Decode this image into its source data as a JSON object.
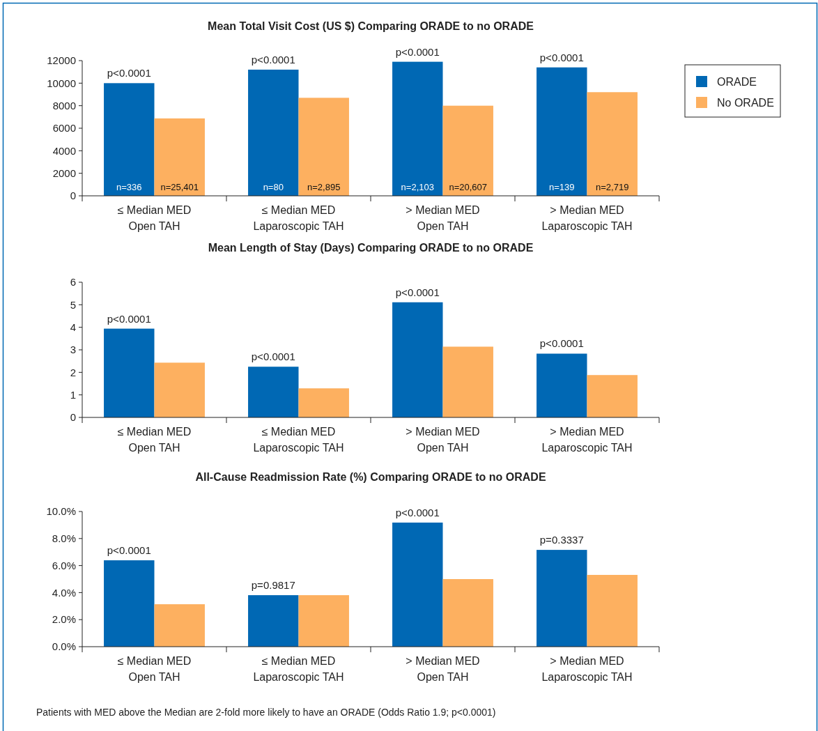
{
  "chart_data": [
    {
      "type": "bar",
      "title": "Mean Total Visit Cost (US $) Comparing ORADE to no ORADE",
      "categories": [
        "≤ Median MED\nOpen TAH",
        "≤ Median MED\nLaparoscopic TAH",
        "> Median MED\nOpen TAH",
        "> Median MED\nLaparoscopic TAH"
      ],
      "series": [
        {
          "name": "ORADE",
          "color": "#0068b4",
          "values": [
            10000,
            11200,
            11900,
            11400
          ]
        },
        {
          "name": "No ORADE",
          "color": "#fdb060",
          "values": [
            6870,
            8700,
            8000,
            9200
          ]
        }
      ],
      "ylim": [
        0,
        12000
      ],
      "yticks": [
        0,
        2000,
        4000,
        6000,
        8000,
        10000,
        12000
      ],
      "grid": false,
      "legend": "right",
      "annotations": [
        {
          "text": "p<0.0001",
          "x": "≤ Median MED\nOpen TAH",
          "y": 10000
        },
        {
          "text": "p<0.0001",
          "x": "≤ Median MED\nLaparoscopic TAH",
          "y": 11200
        },
        {
          "text": "p<0.0001",
          "x": "> Median MED\nOpen TAH",
          "y": 11900
        },
        {
          "text": "p<0.0001",
          "x": "> Median MED\nLaparoscopic TAH",
          "y": 11400
        },
        {
          "text": "n=336",
          "x": "≤ Median MED\nOpen TAH",
          "y": 0
        },
        {
          "text": "n=25,401",
          "x": "≤ Median MED\nOpen TAH",
          "y": 0
        },
        {
          "text": "n=80",
          "x": "≤ Median MED\nLaparoscopic TAH",
          "y": 0
        },
        {
          "text": "n=2,895",
          "x": "≤ Median MED\nLaparoscopic TAH",
          "y": 0
        },
        {
          "text": "n=2,103",
          "x": "> Median MED\nOpen TAH",
          "y": 0
        },
        {
          "text": "n=20,607",
          "x": "> Median MED\nOpen TAH",
          "y": 0
        },
        {
          "text": "n=139",
          "x": "> Median MED\nLaparoscopic TAH",
          "y": 0
        },
        {
          "text": "n=2,719",
          "x": "> Median MED\nLaparoscopic TAH",
          "y": 0
        }
      ]
    },
    {
      "type": "bar",
      "title": "Mean Length of Stay (Days) Comparing ORADE to no ORADE",
      "categories": [
        "≤ Median MED\nOpen TAH",
        "≤ Median MED\nLaparoscopic TAH",
        "> Median MED\nOpen TAH",
        "> Median MED\nLaparoscopic TAH"
      ],
      "series": [
        {
          "color": "#0068b4",
          "values": [
            3.94,
            2.25,
            5.11,
            2.83
          ]
        },
        {
          "color": "#fdb060",
          "values": [
            2.43,
            1.29,
            3.14,
            1.88
          ]
        }
      ],
      "ylim": [
        0,
        6
      ],
      "yticks": [
        0,
        1,
        2,
        3,
        4,
        5,
        6
      ],
      "grid": false,
      "annotations": [
        {
          "text": "p<0.0001",
          "x": "≤ Median MED\nOpen TAH",
          "y": 3.94
        },
        {
          "text": "p<0.0001",
          "x": "≤ Median MED\nLaparoscopic TAH",
          "y": 2.25
        },
        {
          "text": "p<0.0001",
          "x": "> Median MED\nOpen TAH",
          "y": 5.11
        },
        {
          "text": "p<0.0001",
          "x": "> Median MED\nLaparoscopic TAH",
          "y": 2.83
        }
      ]
    },
    {
      "type": "bar",
      "title": "All-Cause Readmission Rate (%) Comparing ORADE to no ORADE",
      "categories": [
        "≤ Median MED\nOpen TAH",
        "≤ Median MED\nLaparoscopic TAH",
        "> Median MED\nOpen TAH",
        "> Median MED\nLaparoscopic TAH"
      ],
      "series": [
        {
          "color": "#0068b4",
          "values": [
            6.39,
            3.81,
            9.18,
            7.16
          ]
        },
        {
          "color": "#fdb060",
          "values": [
            3.14,
            3.81,
            5.0,
            5.31
          ]
        }
      ],
      "ylim": [
        0,
        10
      ],
      "yticks": [
        {
          "value": 0,
          "label": "0.0%"
        },
        {
          "value": 2,
          "label": "2.0%"
        },
        {
          "value": 4,
          "label": "4.0%"
        },
        {
          "value": 6,
          "label": "6.0%"
        },
        {
          "value": 8,
          "label": "8.0%"
        },
        {
          "value": 10,
          "label": "10.0%"
        }
      ],
      "grid": false,
      "annotations": [
        {
          "text": "p<0.0001",
          "x": "≤ Median MED\nOpen TAH",
          "y": 6.39
        },
        {
          "text": "p=0.9817",
          "x": "≤ Median MED\nLaparoscopic TAH",
          "y": 3.81
        },
        {
          "text": "p<0.0001",
          "x": "> Median MED\nOpen TAH",
          "y": 9.18
        },
        {
          "text": "p=0.3337",
          "x": "> Median MED\nLaparoscopic TAH",
          "y": 7.16
        },
        "Patients with MED above the Median are 2-fold more likely to have an ORADE (Odds Ratio 1.9; p<0.0001)"
      ]
    }
  ]
}
